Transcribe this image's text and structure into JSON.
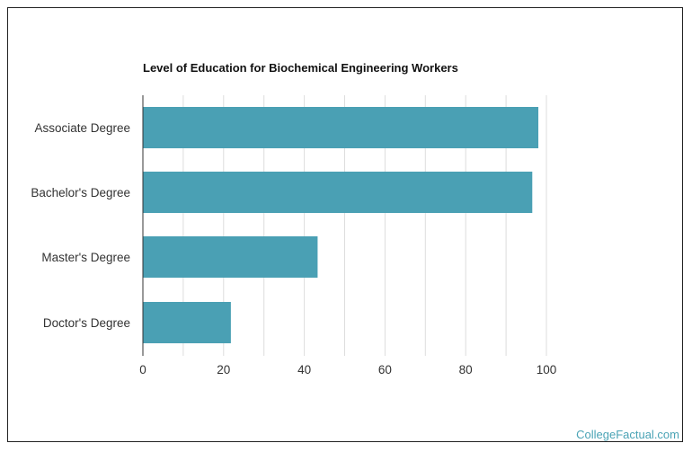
{
  "chart_data": {
    "type": "bar",
    "orientation": "horizontal",
    "title": "Level of Education for Biochemical Engineering Workers",
    "categories": [
      "Associate Degree",
      "Bachelor's Degree",
      "Master's Degree",
      "Doctor's Degree"
    ],
    "values": [
      98,
      96.5,
      43.3,
      21.8
    ],
    "xlim": [
      0,
      100
    ],
    "xticks": [
      0,
      20,
      40,
      60,
      80,
      100
    ],
    "grid": true,
    "bar_color": "#4aa0b4",
    "grid_color": "#dddddd"
  },
  "watermark": "CollegeFactual.com"
}
